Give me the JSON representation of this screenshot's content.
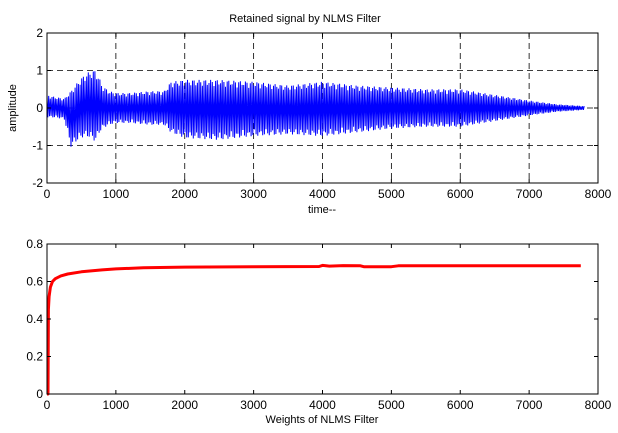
{
  "chart_data": [
    {
      "type": "line",
      "title": "Retained signal by NLMS Filter",
      "xlabel": "time--",
      "ylabel": "amplitude",
      "xlim": [
        0,
        8000
      ],
      "ylim": [
        -2,
        2
      ],
      "xticks": [
        "0",
        "1000",
        "2000",
        "3000",
        "4000",
        "5000",
        "6000",
        "7000",
        "8000"
      ],
      "yticks": [
        "-2",
        "-1",
        "0",
        "1",
        "2"
      ],
      "grid": true,
      "grid_style": "dashed",
      "color": "#0000ff",
      "series": [
        {
          "envelope": {
            "x": [
              0,
              100,
              250,
              350,
              450,
              550,
              650,
              700,
              750,
              800,
              900,
              1000,
              1200,
              1500,
              1700,
              1800,
              2000,
              2500,
              3000,
              3500,
              4000,
              4500,
              5000,
              5500,
              6000,
              6500,
              7000,
              7400,
              7800
            ],
            "max": [
              0.35,
              0.3,
              0.25,
              0.45,
              0.7,
              0.9,
              1.0,
              1.0,
              0.85,
              0.6,
              0.45,
              0.4,
              0.4,
              0.45,
              0.45,
              0.7,
              0.75,
              0.75,
              0.7,
              0.6,
              0.7,
              0.6,
              0.55,
              0.5,
              0.5,
              0.35,
              0.2,
              0.1,
              0.05
            ],
            "min": [
              -0.25,
              -0.25,
              -0.3,
              -1.05,
              -0.85,
              -0.75,
              -0.8,
              -0.9,
              -0.7,
              -0.55,
              -0.45,
              -0.4,
              -0.4,
              -0.45,
              -0.45,
              -0.65,
              -0.8,
              -0.85,
              -0.75,
              -0.7,
              -0.75,
              -0.65,
              -0.55,
              -0.5,
              -0.5,
              -0.35,
              -0.2,
              -0.1,
              -0.05
            ]
          }
        }
      ]
    },
    {
      "type": "line",
      "title": "",
      "xlabel": "Weights of NLMS Filter",
      "ylabel": "",
      "xlim": [
        0,
        8000
      ],
      "ylim": [
        0,
        0.8
      ],
      "xticks": [
        "0",
        "1000",
        "2000",
        "3000",
        "4000",
        "5000",
        "6000",
        "7000",
        "8000"
      ],
      "yticks": [
        "0",
        "0.2",
        "0.4",
        "0.6",
        "0.8"
      ],
      "grid": false,
      "color": "#ff0000",
      "series": [
        {
          "x": [
            0,
            15,
            20,
            30,
            50,
            80,
            120,
            200,
            300,
            500,
            800,
            1000,
            1400,
            2000,
            3000,
            3950,
            4000,
            4100,
            4300,
            4550,
            4600,
            5000,
            5100,
            6000,
            7000,
            7750
          ],
          "values": [
            0,
            0,
            0.45,
            0.52,
            0.57,
            0.6,
            0.615,
            0.63,
            0.64,
            0.652,
            0.662,
            0.667,
            0.673,
            0.677,
            0.679,
            0.68,
            0.686,
            0.682,
            0.685,
            0.684,
            0.679,
            0.679,
            0.684,
            0.684,
            0.684,
            0.684
          ]
        }
      ]
    }
  ]
}
